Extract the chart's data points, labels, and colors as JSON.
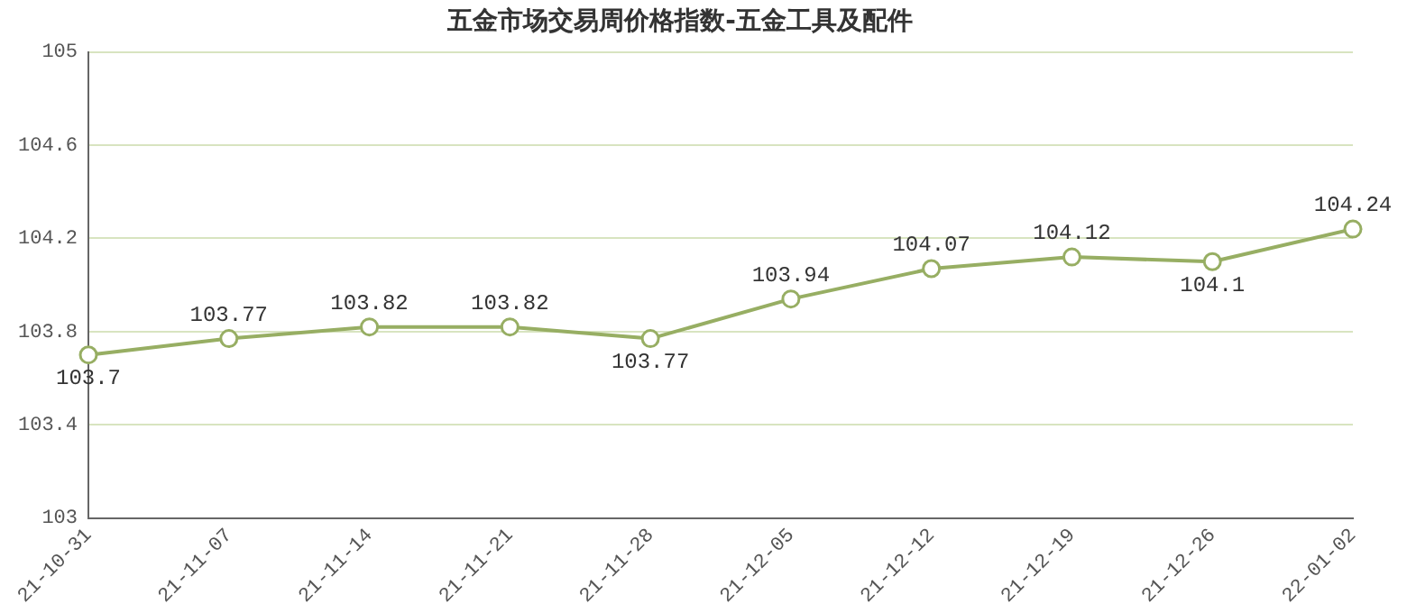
{
  "chart_data": {
    "type": "line",
    "title": "五金市场交易周价格指数-五金工具及配件",
    "categories": [
      "21-10-31",
      "21-11-07",
      "21-11-14",
      "21-11-21",
      "21-11-28",
      "21-12-05",
      "21-12-12",
      "21-12-19",
      "21-12-26",
      "22-01-02"
    ],
    "series": [
      {
        "color": "#97ae63",
        "values": [
          103.7,
          103.77,
          103.82,
          103.82,
          103.77,
          103.94,
          104.07,
          104.12,
          104.1,
          104.24
        ]
      }
    ],
    "ylim": [
      103,
      105
    ],
    "yticks": [
      103,
      103.4,
      103.8,
      104.2,
      104.6,
      105
    ],
    "grid": "y",
    "legend": false,
    "marker": "circle",
    "line_style": "solid",
    "data_labels": true
  }
}
